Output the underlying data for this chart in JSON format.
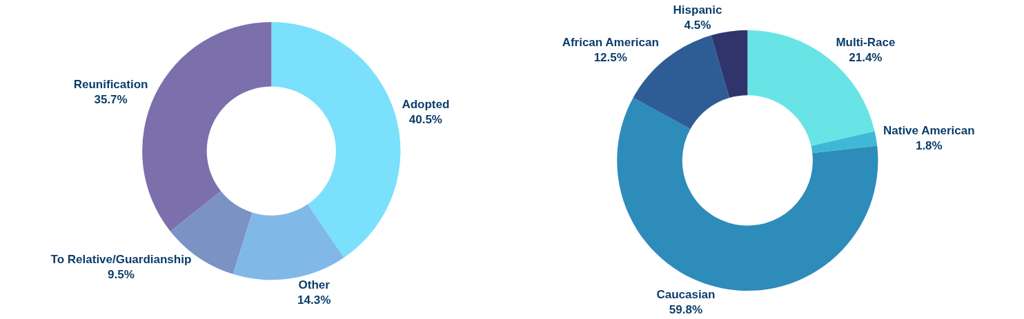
{
  "chart_data": [
    {
      "type": "donut",
      "categories": [
        "Adopted",
        "Other",
        "To Relative/Guardianship",
        "Reunification"
      ],
      "values": [
        40.5,
        14.3,
        9.5,
        35.7
      ],
      "value_labels": [
        "40.5%",
        "14.3%",
        "9.5%",
        "35.7%"
      ],
      "colors": [
        "#7ae0fc",
        "#80b9e8",
        "#7b92c4",
        "#7b70ab"
      ],
      "legend": false
    },
    {
      "type": "donut",
      "categories": [
        "Multi-Race",
        "Native American",
        "Caucasian",
        "African American",
        "Hispanic"
      ],
      "values": [
        21.4,
        1.8,
        59.8,
        12.5,
        4.5
      ],
      "value_labels": [
        "21.4%",
        "1.8%",
        "59.8%",
        "12.5%",
        "4.5%"
      ],
      "colors": [
        "#68e4e6",
        "#3fb8d8",
        "#2d8cba",
        "#2e5d96",
        "#2f356a"
      ],
      "legend": false
    }
  ]
}
